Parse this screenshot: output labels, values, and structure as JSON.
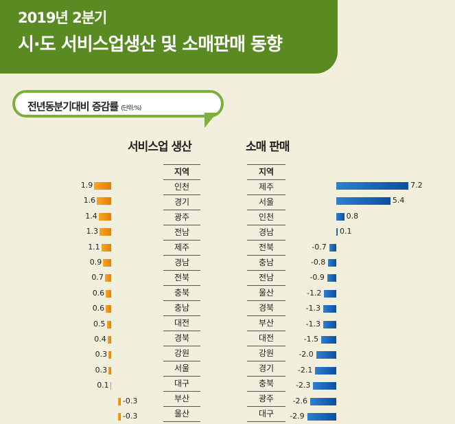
{
  "header": {
    "title_line1": "2019년 2분기",
    "title_line2": "시·도 서비스업생산 및 소매판매 동향"
  },
  "bubble": {
    "text": "전년동분기대비 증감률",
    "unit": "(단위:%)"
  },
  "colors": {
    "header_bg": "#5a8a22",
    "service_bar": "#f0900a",
    "retail_bar": "#1a62b4"
  },
  "chart_data": [
    {
      "type": "bar",
      "title": "서비스업 생산",
      "column_header": "지역",
      "categories": [
        "인천",
        "경기",
        "광주",
        "전남",
        "제주",
        "경남",
        "전북",
        "충북",
        "충남",
        "대전",
        "경북",
        "강원",
        "서울",
        "대구",
        "부산",
        "울산"
      ],
      "values": [
        1.9,
        1.6,
        1.4,
        1.3,
        1.1,
        0.9,
        0.7,
        0.6,
        0.6,
        0.5,
        0.4,
        0.3,
        0.3,
        0.1,
        -0.3,
        -0.3
      ]
    },
    {
      "type": "bar",
      "title": "소매 판매",
      "column_header": "지역",
      "categories": [
        "제주",
        "서울",
        "인천",
        "경남",
        "전북",
        "충남",
        "전남",
        "울산",
        "경북",
        "부산",
        "대전",
        "강원",
        "경기",
        "충북",
        "광주",
        "대구"
      ],
      "values": [
        7.2,
        5.4,
        0.8,
        0.1,
        -0.7,
        -0.8,
        -0.9,
        -1.2,
        -1.3,
        -1.3,
        -1.5,
        -2.0,
        -2.1,
        -2.3,
        -2.6,
        -2.9
      ]
    }
  ]
}
